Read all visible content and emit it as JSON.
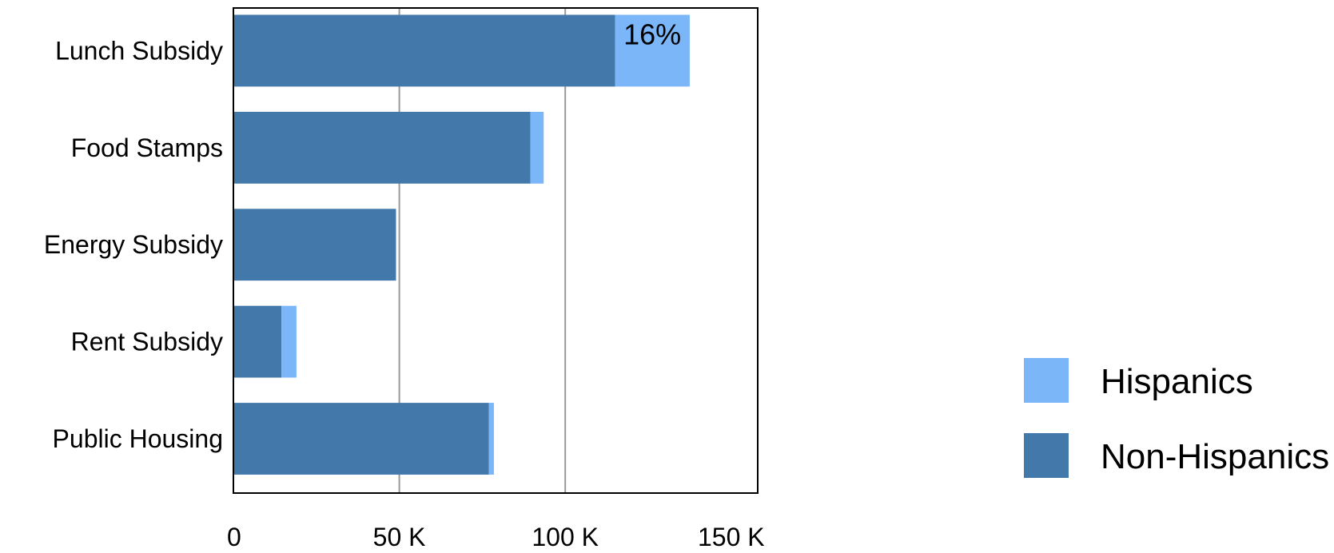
{
  "chart_data": {
    "type": "bar",
    "orientation": "horizontal",
    "stacked": true,
    "categories": [
      "Lunch Subsidy",
      "Food Stamps",
      "Energy Subsidy",
      "Rent Subsidy",
      "Public Housing"
    ],
    "series": [
      {
        "name": "Non-Hispanics",
        "color": "#4379aa",
        "values": [
          115000,
          89500,
          49000,
          14500,
          77000
        ]
      },
      {
        "name": "Hispanics",
        "color": "#7ab6f8",
        "values": [
          22500,
          4000,
          0,
          4500,
          1500
        ]
      }
    ],
    "annotations": [
      {
        "category": "Lunch Subsidy",
        "series": "Hispanics",
        "text": "16%"
      }
    ],
    "xticks": [
      0,
      50000,
      100000,
      150000
    ],
    "xtick_labels": [
      "0",
      "50 K",
      "100 K",
      "150 K"
    ],
    "xlim": [
      0,
      158000
    ],
    "gridlines": [
      50000,
      100000
    ],
    "grid": true,
    "legend_placement": "bottom-right",
    "legend": [
      {
        "label": "Hispanics",
        "color": "#7ab6f8"
      },
      {
        "label": "Non-Hispanics",
        "color": "#4379aa"
      }
    ],
    "title": "",
    "xlabel": "",
    "ylabel": ""
  }
}
